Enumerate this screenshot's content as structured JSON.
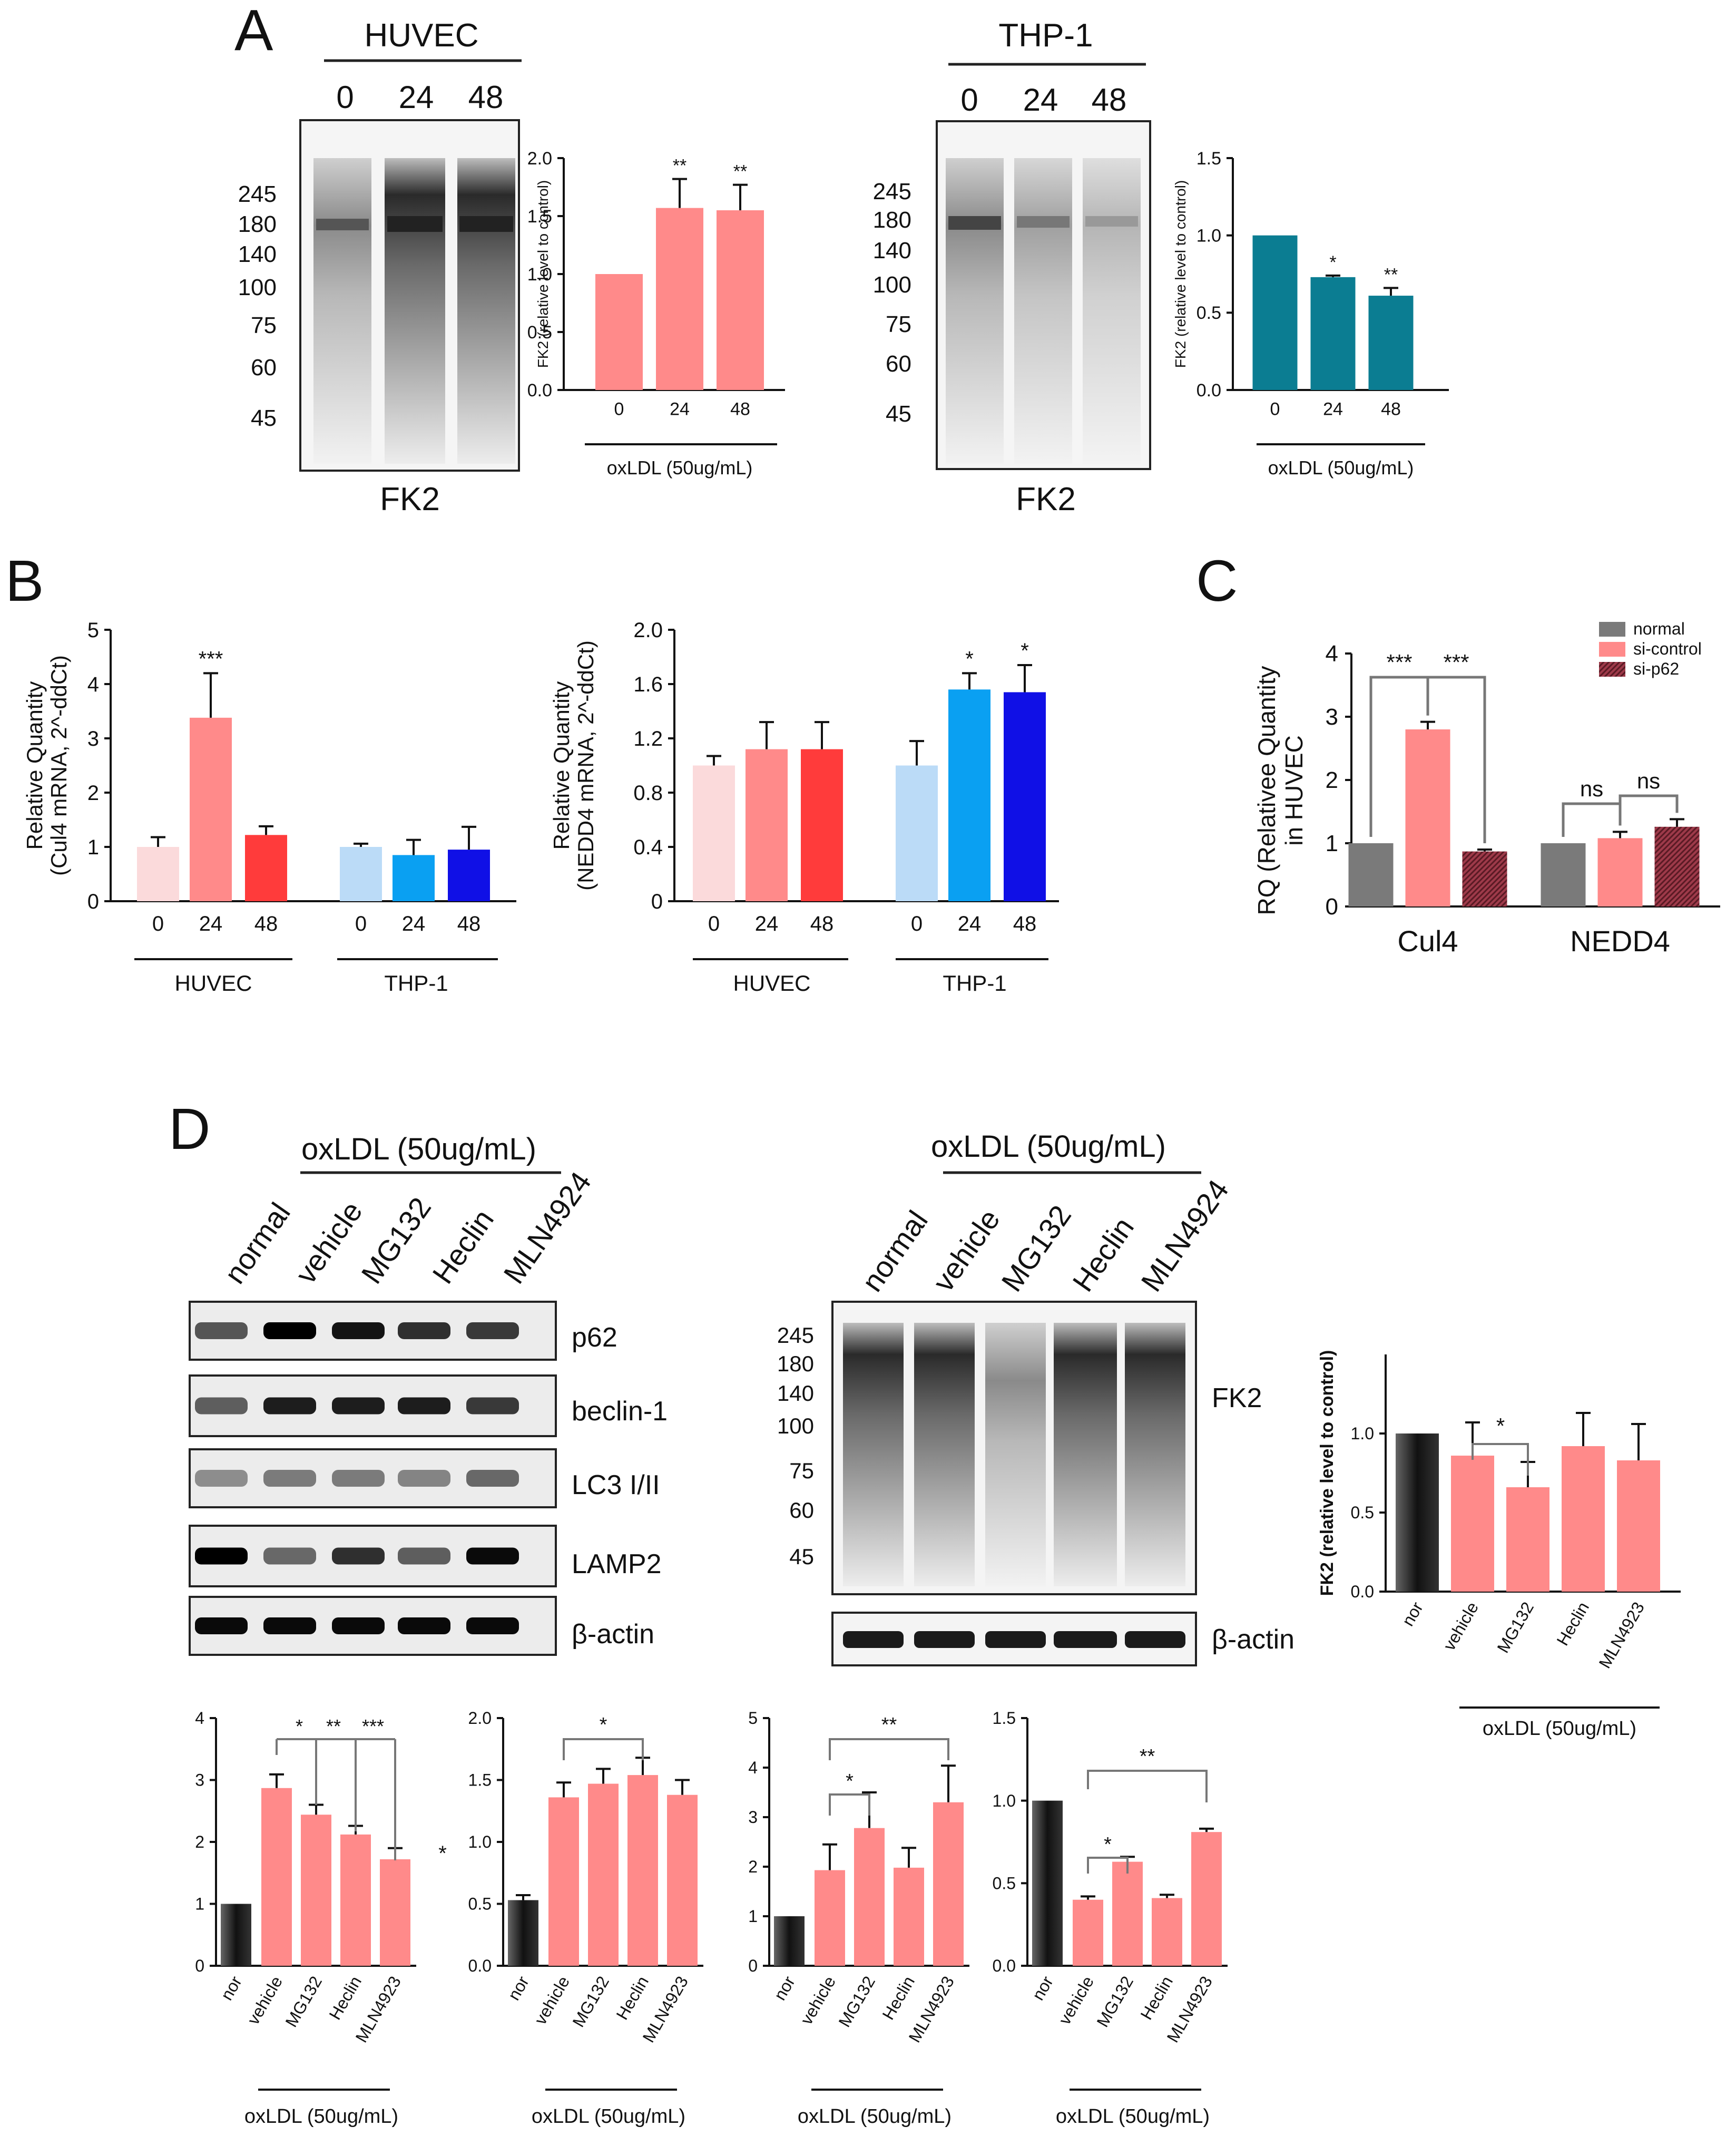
{
  "colors": {
    "pink": "#FF8A8A",
    "pink_light": "#FBDADB",
    "red": "#FF3B3B",
    "teal": "#0B7D92",
    "light_blue": "#BBDBF7",
    "sky_blue": "#0AA0F2",
    "blue": "#1010E6",
    "grey": "#7A7A7A",
    "maroon": "#9E3A4A",
    "black": "#111111",
    "normal_dark": "#2A2A2A"
  },
  "panel_labels": [
    "A",
    "B",
    "C",
    "D"
  ],
  "blots": [
    {
      "id": "huvec-fk2",
      "header": "HUVEC",
      "lanes": [
        "0",
        "24",
        "48"
      ],
      "markers": [
        "245",
        "180",
        "140",
        "100",
        "75",
        "60",
        "45"
      ],
      "label": "FK2"
    },
    {
      "id": "thp1-fk2",
      "header": "THP-1",
      "lanes": [
        "0",
        "24",
        "48"
      ],
      "markers": [
        "245",
        "180",
        "140",
        "100",
        "75",
        "60",
        "45"
      ],
      "label": "FK2"
    },
    {
      "id": "d-left",
      "header": "oxLDL (50ug/mL)",
      "lanes": [
        "normal",
        "vehicle",
        "MG132",
        "Heclin",
        "MLN4924"
      ],
      "rows": [
        "p62",
        "beclin-1",
        "LC3 I/II",
        "LAMP2",
        "β-actin"
      ]
    },
    {
      "id": "d-right",
      "header": "oxLDL (50ug/mL)",
      "lanes": [
        "normal",
        "vehicle",
        "MG132",
        "Heclin",
        "MLN4924"
      ],
      "markers": [
        "245",
        "180",
        "140",
        "100",
        "75",
        "60",
        "45"
      ],
      "labels": [
        "FK2",
        "β-actin"
      ]
    }
  ],
  "chart_data": [
    {
      "id": "A-huvec",
      "type": "bar",
      "title": "",
      "ylabel": "FK2 (relative level to control)",
      "xlabel": "oxLDL (50ug/mL)",
      "categories": [
        "0",
        "24",
        "48"
      ],
      "values": [
        1.0,
        1.57,
        1.55
      ],
      "errors": [
        0,
        0.25,
        0.22
      ],
      "sig": [
        "",
        "**",
        "**"
      ],
      "ylim": [
        0,
        2.0
      ],
      "yticks": [
        "0.0",
        "0.5",
        "1.0",
        "1.5",
        "2.0"
      ],
      "colors": [
        "#FF8A8A",
        "#FF8A8A",
        "#FF8A8A"
      ]
    },
    {
      "id": "A-thp1",
      "type": "bar",
      "title": "",
      "ylabel": "FK2 (relative level to control)",
      "xlabel": "oxLDL (50ug/mL)",
      "categories": [
        "0",
        "24",
        "48"
      ],
      "values": [
        1.0,
        0.73,
        0.61
      ],
      "errors": [
        0,
        0.01,
        0.05
      ],
      "sig": [
        "",
        "*",
        "**"
      ],
      "ylim": [
        0,
        1.5
      ],
      "yticks": [
        "0.0",
        "0.5",
        "1.0",
        "1.5"
      ],
      "colors": [
        "#0B7D92",
        "#0B7D92",
        "#0B7D92"
      ]
    },
    {
      "id": "B-cul4",
      "type": "bar",
      "title": "",
      "ylabel": "Relative Quantity (Cul4 mRNA, 2^-ddCt)",
      "groups": [
        "HUVEC",
        "THP-1"
      ],
      "categories": [
        "0",
        "24",
        "48",
        "0",
        "24",
        "48"
      ],
      "values": [
        1.0,
        3.38,
        1.22,
        1.0,
        0.85,
        0.95
      ],
      "errors": [
        0.18,
        0.82,
        0.16,
        0.06,
        0.28,
        0.42
      ],
      "sig": [
        "",
        "***",
        "",
        "",
        "",
        ""
      ],
      "ylim": [
        0,
        5
      ],
      "yticks": [
        "0",
        "1",
        "2",
        "3",
        "4",
        "5"
      ],
      "colors": [
        "#FBDADB",
        "#FF8A8A",
        "#FF3B3B",
        "#BBDBF7",
        "#0AA0F2",
        "#1010E6"
      ]
    },
    {
      "id": "B-nedd4",
      "type": "bar",
      "title": "",
      "ylabel": "Relative Quantity (NEDD4 mRNA, 2^-ddCt)",
      "groups": [
        "HUVEC",
        "THP-1"
      ],
      "categories": [
        "0",
        "24",
        "48",
        "0",
        "24",
        "48"
      ],
      "values": [
        1.0,
        1.12,
        1.12,
        1.0,
        1.56,
        1.54
      ],
      "errors": [
        0.07,
        0.2,
        0.2,
        0.18,
        0.12,
        0.2
      ],
      "sig": [
        "",
        "",
        "",
        "",
        "*",
        "*"
      ],
      "ylim": [
        0,
        2.0
      ],
      "yticks": [
        "0",
        "0.4",
        "0.8",
        "1.2",
        "1.6",
        "2.0"
      ],
      "colors": [
        "#FBDADB",
        "#FF8A8A",
        "#FF3B3B",
        "#BBDBF7",
        "#0AA0F2",
        "#1010E6"
      ]
    },
    {
      "id": "C",
      "type": "bar",
      "title": "",
      "ylabel": "RQ (Relativee Quantity in HUVEC",
      "categories": [
        "Cul4",
        "NEDD4"
      ],
      "series": [
        {
          "name": "normal",
          "values": [
            1.0,
            1.0
          ],
          "errors": [
            0,
            0
          ]
        },
        {
          "name": "si-control",
          "values": [
            2.8,
            1.08
          ],
          "errors": [
            0.12,
            0.1
          ]
        },
        {
          "name": "si-p62",
          "values": [
            0.87,
            1.26
          ],
          "errors": [
            0.03,
            0.12
          ]
        }
      ],
      "comparisons": [
        "***",
        "***",
        "ns",
        "ns"
      ],
      "ylim": [
        0,
        4
      ],
      "yticks": [
        "0",
        "1",
        "2",
        "3",
        "4"
      ],
      "legend": "top-right",
      "colors": [
        "#7A7A7A",
        "#FF8A8A",
        "#9E3A4A"
      ]
    },
    {
      "id": "D-fk2",
      "type": "bar",
      "title": "",
      "ylabel": "FK2 (relative level to control)",
      "xlabel": "oxLDL (50ug/mL)",
      "categories": [
        "nor",
        "vehicle",
        "MG132",
        "Heclin",
        "MLN4923"
      ],
      "values": [
        1.0,
        0.86,
        0.66,
        0.92,
        0.83
      ],
      "errors": [
        0,
        0.21,
        0.16,
        0.21,
        0.23
      ],
      "sig_label": "*",
      "ylim": [
        0,
        1.5
      ],
      "yticks": [
        "0.0",
        "0.5",
        "1.0"
      ],
      "colors": [
        "#2A2A2A",
        "#FF8A8A",
        "#FF8A8A",
        "#FF8A8A",
        "#FF8A8A"
      ]
    },
    {
      "id": "D-p62",
      "type": "bar",
      "title": "",
      "xlabel": "oxLDL (50ug/mL)",
      "categories": [
        "nor",
        "vehicle",
        "MG132",
        "Heclin",
        "MLN4923"
      ],
      "values": [
        1.0,
        2.87,
        2.44,
        2.12,
        1.72
      ],
      "errors": [
        0,
        0.22,
        0.16,
        0.14,
        0.18
      ],
      "sig_labels": [
        "*",
        "**",
        "***"
      ],
      "ylim": [
        0,
        4
      ],
      "yticks": [
        "0",
        "1",
        "2",
        "3",
        "4"
      ],
      "colors": [
        "#2A2A2A",
        "#FF8A8A",
        "#FF8A8A",
        "#FF8A8A",
        "#FF8A8A"
      ]
    },
    {
      "id": "D-beclin",
      "type": "bar",
      "title": "",
      "xlabel": "oxLDL (50ug/mL)",
      "side_mark": "*",
      "categories": [
        "nor",
        "vehicle",
        "MG132",
        "Heclin",
        "MLN4923"
      ],
      "values": [
        0.53,
        1.36,
        1.47,
        1.54,
        1.38
      ],
      "errors": [
        0.04,
        0.12,
        0.12,
        0.14,
        0.12
      ],
      "sig_label": "*",
      "ylim": [
        0,
        2.0
      ],
      "yticks": [
        "0.0",
        "0.5",
        "1.0",
        "1.5",
        "2.0"
      ],
      "colors": [
        "#2A2A2A",
        "#FF8A8A",
        "#FF8A8A",
        "#FF8A8A",
        "#FF8A8A"
      ]
    },
    {
      "id": "D-lc3",
      "type": "bar",
      "title": "",
      "xlabel": "oxLDL (50ug/mL)",
      "categories": [
        "nor",
        "vehicle",
        "MG132",
        "Heclin",
        "MLN4923"
      ],
      "values": [
        1.0,
        1.93,
        2.78,
        1.98,
        3.3
      ],
      "errors": [
        0,
        0.52,
        0.72,
        0.4,
        0.74
      ],
      "sig_labels": [
        "*",
        "**"
      ],
      "ylim": [
        0,
        5
      ],
      "yticks": [
        "0",
        "1",
        "2",
        "3",
        "4",
        "5"
      ],
      "colors": [
        "#2A2A2A",
        "#FF8A8A",
        "#FF8A8A",
        "#FF8A8A",
        "#FF8A8A"
      ]
    },
    {
      "id": "D-lamp2",
      "type": "bar",
      "title": "",
      "xlabel": "oxLDL (50ug/mL)",
      "categories": [
        "nor",
        "vehicle",
        "MG132",
        "Heclin",
        "MLN4923"
      ],
      "values": [
        1.0,
        0.4,
        0.63,
        0.41,
        0.81
      ],
      "errors": [
        0,
        0.02,
        0.03,
        0.02,
        0.02
      ],
      "sig_labels": [
        "*",
        "**"
      ],
      "ylim": [
        0,
        1.5
      ],
      "yticks": [
        "0.0",
        "0.5",
        "1.0",
        "1.5"
      ],
      "colors": [
        "#2A2A2A",
        "#FF8A8A",
        "#FF8A8A",
        "#FF8A8A",
        "#FF8A8A"
      ]
    }
  ]
}
